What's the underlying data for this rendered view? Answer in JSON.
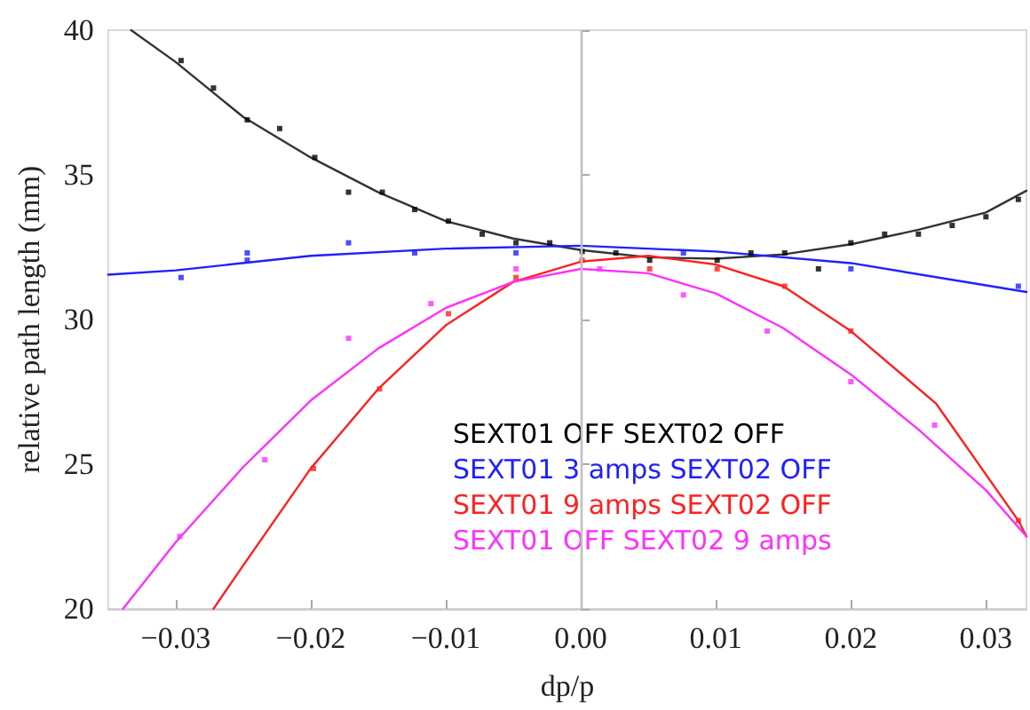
{
  "chart_data": {
    "type": "scatter",
    "xlabel": "dp/p",
    "ylabel": "relative path length (mm)",
    "xlim": [
      -0.035,
      0.033
    ],
    "xticks": [
      {
        "value": -0.03,
        "label": "−0.03"
      },
      {
        "value": -0.02,
        "label": "−0.02"
      },
      {
        "value": -0.01,
        "label": "−0.01"
      },
      {
        "value": 0,
        "label": "0.00"
      },
      {
        "value": 0.01,
        "label": "0.01"
      },
      {
        "value": 0.02,
        "label": "0.02"
      },
      {
        "value": 0.03,
        "label": "0.03"
      }
    ],
    "ylim": [
      20,
      40
    ],
    "yticks": [
      20,
      25,
      30,
      35,
      40
    ],
    "grid": false,
    "legend": "bottom",
    "marker": "square",
    "ref_lines": [
      {
        "axis": "x",
        "value": 0,
        "color": "#c0c0c0"
      }
    ],
    "series": [
      {
        "name": "SEXT01 OFF SEXT02 OFF",
        "color": "#000000",
        "x": [
          -0.0296,
          -0.0272,
          -0.0247,
          -0.0223,
          -0.0197,
          -0.0172,
          -0.0147,
          -0.0123,
          -0.0098,
          -0.0073,
          -0.0048,
          -0.0023,
          0.0001,
          0.0026,
          0.0051,
          0.0101,
          0.0126,
          0.0151,
          0.0176,
          0.02,
          0.0225,
          0.025,
          0.0275,
          0.03,
          0.0324
        ],
        "values": [
          38.95,
          38.0,
          36.9,
          36.6,
          35.6,
          34.4,
          34.4,
          33.8,
          33.4,
          32.95,
          32.65,
          32.65,
          32.35,
          32.3,
          32.05,
          32.05,
          32.3,
          32.3,
          31.75,
          32.65,
          32.95,
          32.95,
          33.25,
          33.55,
          34.15
        ]
      },
      {
        "name": "SEXT01 3 amps SEXT02 OFF",
        "color": "#2020ff",
        "x": [
          -0.0296,
          -0.0247,
          -0.0247,
          -0.0172,
          -0.0123,
          -0.0048,
          0.0076,
          0.02,
          0.0324
        ],
        "values": [
          31.45,
          32.3,
          32.05,
          32.65,
          32.3,
          32.3,
          32.3,
          31.75,
          31.15
        ]
      },
      {
        "name": "SEXT01 9 amps SEXT02 OFF",
        "color": "#ff2020",
        "x": [
          -0.0198,
          -0.0149,
          -0.0098,
          -0.0048,
          0.0001,
          0.0051,
          0.0101,
          0.0151,
          0.02,
          0.0324
        ],
        "values": [
          24.85,
          27.6,
          30.2,
          31.45,
          32.05,
          31.75,
          31.75,
          31.15,
          29.6,
          23.05
        ]
      },
      {
        "name": "SEXT01 OFF SEXT02 9 amps",
        "color": "#ff30ff",
        "x": [
          -0.0297,
          -0.0234,
          -0.0172,
          -0.0111,
          -0.0048,
          0.0014,
          0.0076,
          0.0138,
          0.02,
          0.0262
        ],
        "values": [
          22.5,
          25.15,
          29.35,
          30.55,
          31.75,
          31.75,
          30.85,
          29.6,
          27.85,
          26.35
        ]
      },
      {
        "type": "line",
        "marker": "none",
        "color": "#333333",
        "x": [
          -0.0333,
          -0.03,
          -0.025,
          -0.02,
          -0.015,
          -0.01,
          -0.005,
          0,
          0.005,
          0.01,
          0.015,
          0.02,
          0.025,
          0.03,
          0.033
        ],
        "values": [
          40,
          38.9,
          37.0,
          35.6,
          34.4,
          33.4,
          32.8,
          32.4,
          32.15,
          32.1,
          32.25,
          32.6,
          33.1,
          33.7,
          34.45
        ]
      },
      {
        "type": "line",
        "marker": "none",
        "color": "#2020ff",
        "x": [
          -0.035,
          -0.03,
          -0.02,
          -0.01,
          0,
          0.01,
          0.02,
          0.033
        ],
        "values": [
          31.55,
          31.7,
          32.2,
          32.45,
          32.55,
          32.35,
          31.95,
          30.95
        ]
      },
      {
        "type": "line",
        "marker": "none",
        "color": "#ff2020",
        "x": [
          -0.0272,
          -0.025,
          -0.02,
          -0.015,
          -0.01,
          -0.005,
          0,
          0.005,
          0.01,
          0.015,
          0.02,
          0.0263,
          0.0324,
          0.033
        ],
        "values": [
          20,
          21.5,
          24.85,
          27.6,
          29.8,
          31.3,
          32.0,
          32.2,
          31.9,
          31.15,
          29.6,
          27.1,
          23.05,
          22.5
        ]
      },
      {
        "type": "line",
        "marker": "none",
        "color": "#ff30ff",
        "x": [
          -0.0339,
          -0.03,
          -0.025,
          -0.02,
          -0.015,
          -0.01,
          -0.005,
          0,
          0.005,
          0.01,
          0.015,
          0.02,
          0.025,
          0.03,
          0.033
        ],
        "values": [
          20,
          22.3,
          24.9,
          27.2,
          29.0,
          30.4,
          31.3,
          31.75,
          31.6,
          30.9,
          29.7,
          28.1,
          26.2,
          24.1,
          22.5
        ]
      }
    ]
  }
}
